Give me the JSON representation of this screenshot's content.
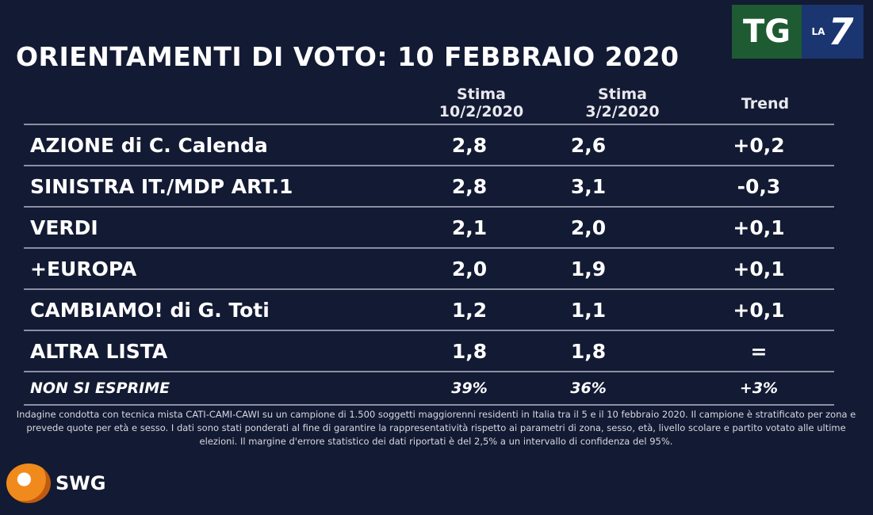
{
  "title": "ORIENTAMENTI DI VOTO: 10 FEBBRAIO 2020",
  "logo": {
    "tg": "TG",
    "la": "LA",
    "seven": "7"
  },
  "chart_data": {
    "type": "table",
    "columns": [
      "Stima 10/2/2020",
      "Stima 3/2/2020",
      "Trend"
    ],
    "headers": {
      "c1a": "Stima",
      "c1b": "10/2/2020",
      "c2a": "Stima",
      "c2b": "3/2/2020",
      "c3": "Trend"
    },
    "rows": [
      {
        "label": "AZIONE di C. Calenda",
        "v1": "2,8",
        "v2": "2,6",
        "trend": "+0,2"
      },
      {
        "label": "SINISTRA IT./MDP ART.1",
        "v1": "2,8",
        "v2": "3,1",
        "trend": "-0,3"
      },
      {
        "label": "VERDI",
        "v1": "2,1",
        "v2": "2,0",
        "trend": "+0,1"
      },
      {
        "label": "+EUROPA",
        "v1": "2,0",
        "v2": "1,9",
        "trend": "+0,1"
      },
      {
        "label": "CAMBIAMO! di G. Toti",
        "v1": "1,2",
        "v2": "1,1",
        "trend": "+0,1"
      },
      {
        "label": "ALTRA LISTA",
        "v1": "1,8",
        "v2": "1,8",
        "trend": "="
      },
      {
        "label": "NON SI ESPRIME",
        "v1": "39%",
        "v2": "36%",
        "trend": "+3%"
      }
    ]
  },
  "note": "Indagine condotta con tecnica mista CATI-CAMI-CAWI su un campione di 1.500 soggetti maggiorenni residenti in Italia tra il 5 e il 10 febbraio 2020. Il campione è stratificato per zona e prevede quote per età e sesso. I dati sono stati ponderati al fine di garantire la rappresentatività rispetto ai parametri di zona, sesso, età, livello scolare e partito votato alle ultime elezioni. Il margine d'errore statistico dei dati riportati è del 2,5% a un intervallo di confidenza del 95%.",
  "brand": "SWG"
}
